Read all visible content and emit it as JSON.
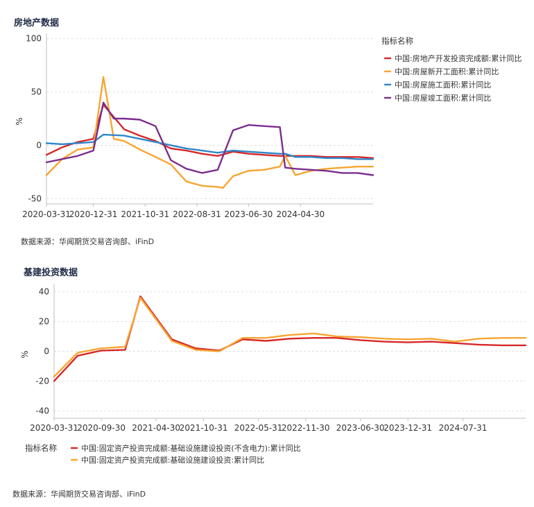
{
  "charts": [
    {
      "section_title": "房地产数据",
      "source": "数据来源：华闻期货交易咨询部、iFinD",
      "legend_title": "指标名称",
      "ylabel": "%",
      "colors": {
        "axis": "#bfbfbf",
        "grid": "#e0e0e0"
      },
      "chart_data": {
        "type": "line",
        "x_ticks": [
          "2020-03-31",
          "2020-12-31",
          "2021-10-31",
          "2022-08-31",
          "2023-06-30",
          "2024-04-30"
        ],
        "x_range": [
          "2020-03-31",
          "2025-06-30"
        ],
        "ylim": [
          -55,
          105
        ],
        "y_ticks": [
          100,
          50,
          0,
          -50
        ],
        "series": [
          {
            "name": "中国:房地产开发投资完成额:累计同比",
            "color": "#d62728",
            "x": [
              "2020-03-31",
              "2020-06-30",
              "2020-09-30",
              "2020-12-31",
              "2021-02-28",
              "2021-06-30",
              "2021-09-30",
              "2021-12-31",
              "2022-03-31",
              "2022-06-30",
              "2022-09-30",
              "2022-12-31",
              "2023-03-31",
              "2023-06-30",
              "2023-09-30",
              "2023-12-31",
              "2024-03-31",
              "2024-06-30",
              "2024-09-30",
              "2024-12-31",
              "2025-03-31",
              "2025-06-30"
            ],
            "values": [
              -9,
              -2,
              3,
              6,
              38,
              15,
              9,
              4,
              -3,
              -5,
              -8,
              -10,
              -6,
              -8,
              -9,
              -10,
              -10,
              -10,
              -11,
              -11,
              -11,
              -12
            ]
          },
          {
            "name": "中国:房屋新开工面积:累计同比",
            "color": "#f7a530",
            "x": [
              "2020-03-31",
              "2020-06-30",
              "2020-09-30",
              "2020-12-31",
              "2021-02-28",
              "2021-04-30",
              "2021-06-30",
              "2021-09-30",
              "2021-12-31",
              "2022-03-31",
              "2022-06-30",
              "2022-09-30",
              "2022-12-31",
              "2023-01-31",
              "2023-03-31",
              "2023-06-30",
              "2023-09-30",
              "2023-12-31",
              "2024-01-31",
              "2024-03-31",
              "2024-06-30",
              "2024-09-30",
              "2024-12-31",
              "2025-03-31",
              "2025-06-30"
            ],
            "values": [
              -28,
              -13,
              -4,
              -2,
              64,
              6,
              4,
              -4,
              -11,
              -18,
              -34,
              -38,
              -39,
              -40,
              -29,
              -24,
              -23,
              -20,
              -10,
              -28,
              -24,
              -22,
              -21,
              -20,
              -20
            ]
          },
          {
            "name": "中国:房屋施工面积:累计同比",
            "color": "#2f86c8",
            "x": [
              "2020-03-31",
              "2020-06-30",
              "2020-09-30",
              "2020-12-31",
              "2021-02-28",
              "2021-06-30",
              "2021-09-30",
              "2021-12-31",
              "2022-03-31",
              "2022-06-30",
              "2022-09-30",
              "2022-12-31",
              "2023-03-31",
              "2023-06-30",
              "2023-09-30",
              "2023-12-31",
              "2024-01-31",
              "2024-03-31",
              "2024-06-30",
              "2024-09-30",
              "2024-12-31",
              "2025-03-31",
              "2025-06-30"
            ],
            "values": [
              2,
              1,
              2,
              3,
              10,
              9,
              6,
              3,
              0,
              -3,
              -5,
              -7,
              -5,
              -6,
              -7,
              -8,
              -8,
              -11,
              -11,
              -12,
              -12,
              -13,
              -13
            ]
          },
          {
            "name": "中国:房屋竣工面积:累计同比",
            "color": "#7b2d8e",
            "x": [
              "2020-03-31",
              "2020-06-30",
              "2020-09-30",
              "2020-12-31",
              "2021-02-28",
              "2021-04-30",
              "2021-06-30",
              "2021-09-30",
              "2021-12-31",
              "2022-03-31",
              "2022-06-30",
              "2022-09-30",
              "2022-12-31",
              "2023-03-31",
              "2023-06-30",
              "2023-09-30",
              "2023-12-31",
              "2024-01-31",
              "2024-03-31",
              "2024-06-30",
              "2024-09-30",
              "2024-12-31",
              "2025-03-31",
              "2025-06-30"
            ],
            "values": [
              -16,
              -13,
              -10,
              -5,
              40,
              25,
              25,
              24,
              18,
              -14,
              -22,
              -26,
              -23,
              14,
              19,
              18,
              17,
              -21,
              -22,
              -23,
              -24,
              -26,
              -26,
              -28
            ]
          }
        ]
      }
    },
    {
      "section_title": "基建投资数据",
      "source": "数据来源：华闻期货交易咨询部、iFinD",
      "legend_title": "指标名称",
      "ylabel": "%",
      "colors": {
        "axis": "#bfbfbf",
        "grid": "#e0e0e0"
      },
      "chart_data": {
        "type": "line",
        "x_ticks": [
          "2020-03-31",
          "2020-09-30",
          "2021-04-30",
          "2021-10-31",
          "2022-05-31",
          "2022-11-30",
          "2023-06-30",
          "2023-12-31",
          "2024-07-31"
        ],
        "x_range": [
          "2020-03-31",
          "2025-03-31"
        ],
        "ylim": [
          -45,
          45
        ],
        "y_ticks": [
          40,
          20,
          0,
          -20,
          -40
        ],
        "series": [
          {
            "name": "中国:固定资产投资完成额:基础设施建设投资(不含电力):累计同比",
            "color": "#d62728",
            "x": [
              "2020-03-31",
              "2020-06-30",
              "2020-09-30",
              "2020-12-31",
              "2021-02-28",
              "2021-06-30",
              "2021-09-30",
              "2021-12-31",
              "2022-03-31",
              "2022-06-30",
              "2022-09-30",
              "2022-12-31",
              "2023-03-31",
              "2023-06-30",
              "2023-09-30",
              "2023-12-31",
              "2024-03-31",
              "2024-06-30",
              "2024-09-30",
              "2024-12-31",
              "2025-03-31"
            ],
            "values": [
              -20,
              -3,
              0.5,
              1,
              37,
              8,
              2,
              0.5,
              8,
              7,
              8.5,
              9,
              9,
              7.5,
              6.5,
              6,
              6.5,
              5.5,
              4.5,
              4,
              4
            ]
          },
          {
            "name": "中国:固定资产投资完成额:基础设施建设投资:累计同比",
            "color": "#f7a530",
            "x": [
              "2020-03-31",
              "2020-06-30",
              "2020-09-30",
              "2020-12-31",
              "2021-02-28",
              "2021-06-30",
              "2021-09-30",
              "2021-12-31",
              "2022-03-31",
              "2022-06-30",
              "2022-09-30",
              "2022-12-31",
              "2023-03-31",
              "2023-06-30",
              "2023-09-30",
              "2023-12-31",
              "2024-03-31",
              "2024-06-30",
              "2024-09-30",
              "2024-12-31",
              "2025-03-31"
            ],
            "values": [
              -17,
              -1,
              2,
              3,
              36,
              7,
              1,
              0,
              9,
              9,
              11,
              12,
              10,
              9.5,
              8.5,
              8,
              8.5,
              6.5,
              8.5,
              9,
              9
            ]
          }
        ]
      }
    }
  ]
}
